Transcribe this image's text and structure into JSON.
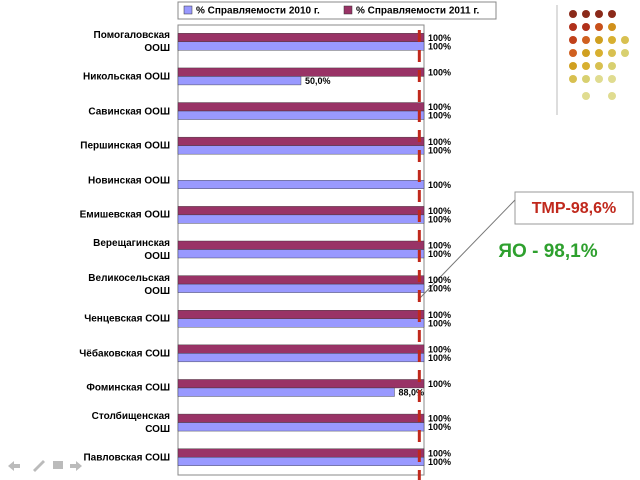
{
  "chart_data": {
    "type": "hbar",
    "categories": [
      "Помогаловская\nООШ",
      "Никольская ООШ",
      "Савинская ООШ",
      "Першинская ООШ",
      "Новинская ООШ",
      "Емишевская ООШ",
      "Верещагинская\nООШ",
      "Великосельская\nООШ",
      "Ченцевская СОШ",
      "Чёбаковская СОШ",
      "Фоминская СОШ",
      "Столбищенская\nСОШ",
      "Павловская СОШ"
    ],
    "series": [
      {
        "name": "% Справляемости 2011 г.",
        "color": "#993366",
        "values": [
          100,
          100,
          100,
          100,
          null,
          100,
          100,
          100,
          100,
          100,
          100,
          100,
          100
        ],
        "value_labels": [
          "100%",
          "100%",
          "100%",
          "100%",
          null,
          "100%",
          "100%",
          "100%",
          "100%",
          "100%",
          "100%",
          "100%",
          "100%"
        ]
      },
      {
        "name": "% Справляемости 2010 г.",
        "color": "#9999ff",
        "values": [
          100,
          50,
          100,
          100,
          100,
          100,
          100,
          100,
          100,
          100,
          88,
          100,
          100
        ],
        "value_labels": [
          "100%",
          "50,0%",
          "100%",
          "100%",
          "100%",
          "100%",
          "100%",
          "100%",
          "100%",
          "100%",
          "88,0%",
          "100%",
          "100%"
        ]
      }
    ],
    "xlim": [
      0,
      100
    ],
    "reference_line": 98.1,
    "reference_color": "#c0281c",
    "annotations": [
      "ТМР-98,6%",
      "ЯО - 98,1%"
    ]
  }
}
